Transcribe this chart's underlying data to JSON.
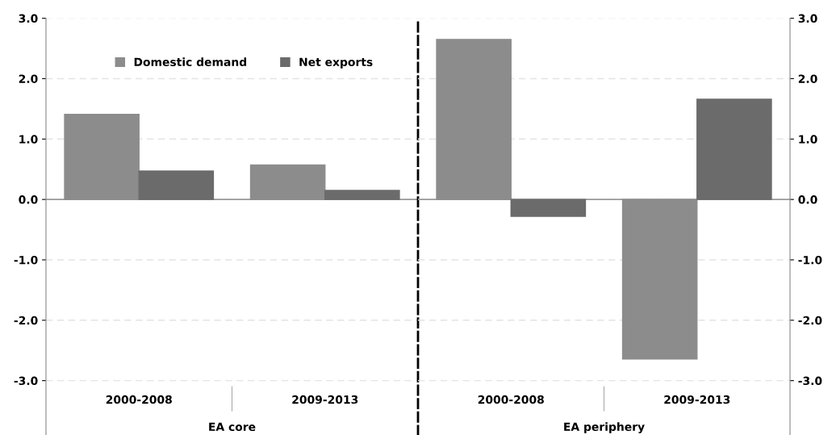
{
  "chart_data": [
    {
      "type": "bar",
      "xlabel": "EA core",
      "categories": [
        "2000-2008",
        "2009-2013"
      ],
      "series": [
        {
          "name": "Domestic demand",
          "color": "#8c8c8c",
          "values": [
            1.41,
            0.57
          ]
        },
        {
          "name": "Net exports",
          "color": "#6b6b6b",
          "values": [
            0.47,
            0.15
          ]
        }
      ],
      "ylim": [
        -3.9,
        3.0
      ],
      "yticks": [
        {
          "value": 3,
          "label": "3.0"
        },
        {
          "value": 2,
          "label": "2.0"
        },
        {
          "value": 1,
          "label": "1.0"
        },
        {
          "value": 0,
          "label": "0.0"
        },
        {
          "value": -1,
          "label": "-1.0"
        },
        {
          "value": -2,
          "label": "-2.0"
        },
        {
          "value": -3,
          "label": "-3.0"
        }
      ],
      "grid": "y",
      "legend": "top left"
    },
    {
      "type": "bar",
      "xlabel": "EA periphery",
      "categories": [
        "2000-2008",
        "2009-2013"
      ],
      "series": [
        {
          "color": "#8c8c8c",
          "values": [
            2.65,
            -2.64
          ],
          "axis": "y2"
        },
        {
          "color": "#6b6b6b",
          "values": [
            -0.28,
            1.66
          ],
          "axis": "y2"
        }
      ],
      "y2lim": [
        -3.9,
        3.0
      ],
      "y2ticks": [
        {
          "value": 3,
          "label": "3.0"
        },
        {
          "value": 2,
          "label": "2.0"
        },
        {
          "value": 1,
          "label": "1.0"
        },
        {
          "value": 0,
          "label": "0.0"
        },
        {
          "value": -1,
          "label": "-1.0"
        },
        {
          "value": -2,
          "label": "-2.0"
        },
        {
          "value": -3,
          "label": "-3.0"
        }
      ],
      "grid": "y"
    }
  ]
}
